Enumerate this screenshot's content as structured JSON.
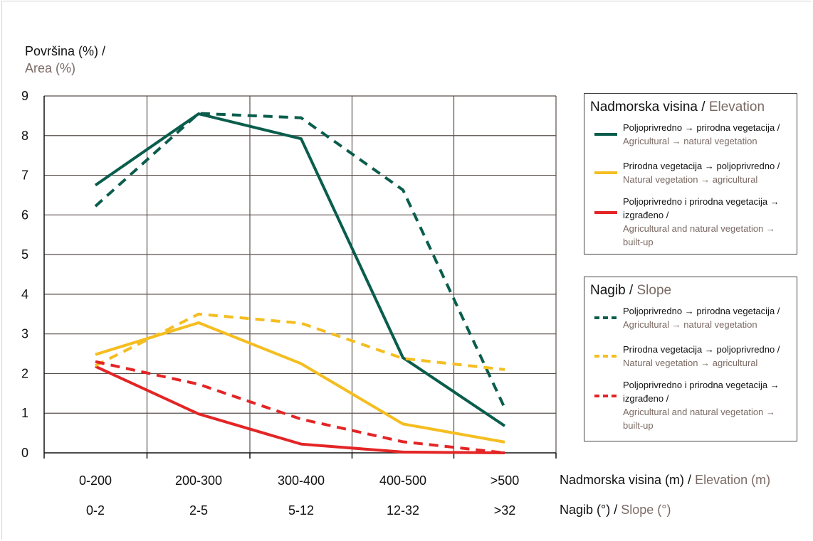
{
  "chart_data": {
    "type": "line",
    "ytitle": {
      "main": "Površina (%) /",
      "sub": "Area (%)"
    },
    "ylim": [
      0,
      9
    ],
    "yticks": [
      0,
      1,
      2,
      3,
      4,
      5,
      6,
      7,
      8,
      9
    ],
    "grid": true,
    "categories_elevation": [
      "0-200",
      "200-300",
      "300-400",
      "400-500",
      ">500"
    ],
    "categories_slope": [
      "0-2",
      "2-5",
      "5-12",
      "12-32",
      ">32"
    ],
    "xtitle_elevation": {
      "main": "Nadmorska visina (m) /",
      "sub": "Elevation (m)"
    },
    "xtitle_slope": {
      "main": "Nagib (°) /",
      "sub": "Slope (°)"
    },
    "series": [
      {
        "group": "elevation",
        "dash": false,
        "color": "#0a5d4c",
        "values": [
          6.75,
          8.55,
          7.92,
          2.4,
          0.68
        ]
      },
      {
        "group": "elevation",
        "dash": false,
        "color": "#f5bd1f",
        "values": [
          2.48,
          3.28,
          2.25,
          0.73,
          0.27
        ]
      },
      {
        "group": "elevation",
        "dash": false,
        "color": "#e32526",
        "values": [
          2.18,
          0.98,
          0.22,
          0.02,
          0.0
        ]
      },
      {
        "group": "slope",
        "dash": true,
        "color": "#0a5d4c",
        "values": [
          6.22,
          8.56,
          8.45,
          6.63,
          1.13
        ]
      },
      {
        "group": "slope",
        "dash": true,
        "color": "#f5bd1f",
        "values": [
          2.2,
          3.5,
          3.27,
          2.38,
          2.1
        ]
      },
      {
        "group": "slope",
        "dash": true,
        "color": "#e32526",
        "values": [
          2.3,
          1.73,
          0.85,
          0.28,
          0.0
        ]
      }
    ],
    "legends": [
      {
        "title_main": "Nadmorska visina /",
        "title_sub": "Elevation",
        "dash": false,
        "items": [
          {
            "color": "#0a5d4c",
            "main": "Poljoprivredno → prirodna vegetacija /",
            "sub": "Agricultural → natural vegetation"
          },
          {
            "color": "#f5bd1f",
            "main": "Prirodna vegetacija → poljoprivredno /",
            "sub": "Natural vegetation → agricultural"
          },
          {
            "color": "#e32526",
            "main": "Poljoprivredno i prirodna vegetacija → izgrađeno /",
            "sub": "Agricultural and natural vegetation → built-up"
          }
        ]
      },
      {
        "title_main": "Nagib /",
        "title_sub": "Slope",
        "dash": true,
        "items": [
          {
            "color": "#0a5d4c",
            "main": "Poljoprivredno → prirodna vegetacija /",
            "sub": "Agricultural → natural vegetation"
          },
          {
            "color": "#f5bd1f",
            "main": "Prirodna vegetacija → poljoprivredno /",
            "sub": "Natural vegetation → agricultural"
          },
          {
            "color": "#e32526",
            "main": "Poljoprivredno i prirodna vegetacija → izgrađeno /",
            "sub": "Agricultural and natural vegetation → built-up"
          }
        ]
      }
    ]
  }
}
